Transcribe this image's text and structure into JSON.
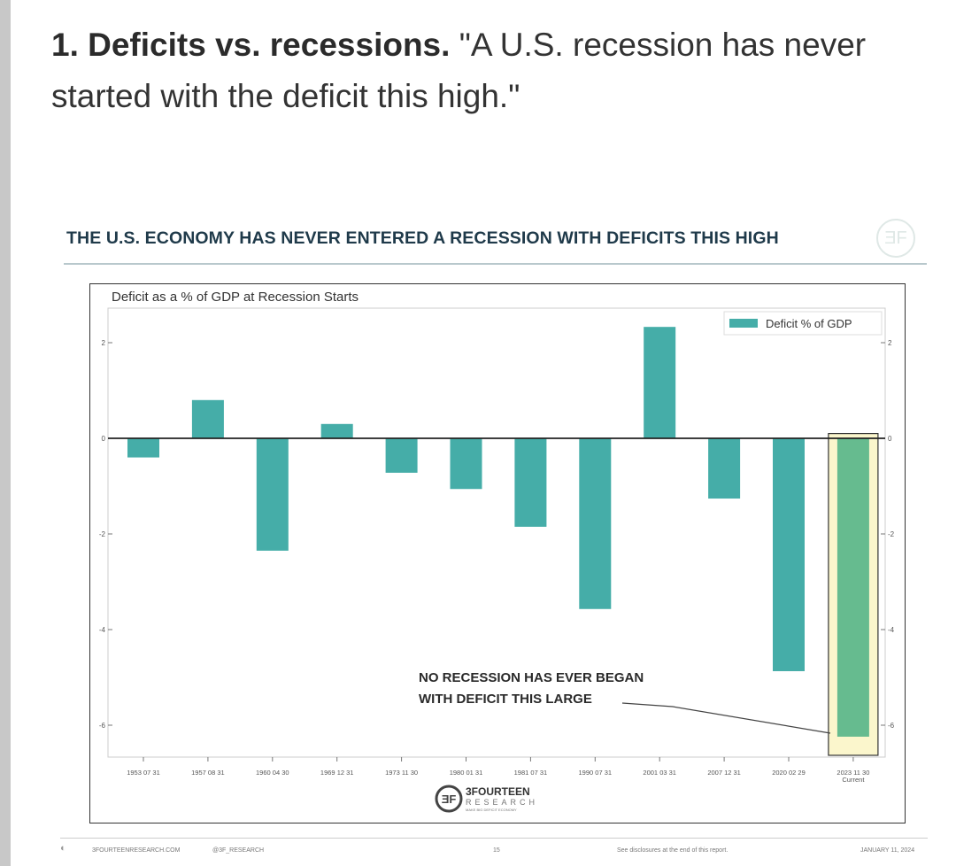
{
  "heading": {
    "bold": "1. Deficits vs. recessions.",
    "quote": " \"A U.S. recession has never started with the deficit this high.\""
  },
  "chart_title": "THE U.S. ECONOMY HAS NEVER ENTERED A RECESSION WITH DEFICITS THIS HIGH",
  "chart_data": {
    "type": "bar",
    "title": "Deficit as a % of GDP at Recession Starts",
    "xlabel": "",
    "ylabel": "",
    "categories": [
      "1953 07 31",
      "1957 08 31",
      "1960 04 30",
      "1969 12 31",
      "1973 11 30",
      "1980 01 31",
      "1981 07 31",
      "1990 07 31",
      "2001 03 31",
      "2007 12 31",
      "2020 02 29",
      "2023 11 30"
    ],
    "category_sublabels": {
      "2023 11 30": "Current"
    },
    "series": [
      {
        "name": "Deficit % of GDP",
        "values": [
          -0.4,
          0.8,
          -2.35,
          0.3,
          -0.72,
          -1.06,
          -1.85,
          -3.57,
          2.33,
          -1.26,
          -4.87,
          -6.24
        ]
      }
    ],
    "ylim": [
      -6.8,
      2.6
    ],
    "yticks": [
      2,
      0,
      -2,
      -4,
      -6
    ],
    "legend": "top-right",
    "grid": false,
    "colors": {
      "bar": "#45ada8",
      "highlight_bar": "#66bb8f",
      "highlight_bg": "#fbf6cc"
    },
    "annotation": {
      "line1": "NO RECESSION HAS EVER BEGAN",
      "line2": "WITH DEFICIT THIS LARGE"
    }
  },
  "logo": {
    "name": "3FOURTEEN",
    "sub": "RESEARCH",
    "tagline": "MAKE BIG DEFICIT ECONOMY"
  },
  "footer": {
    "site": "3FOURTEENRESEARCH.COM",
    "handle": "@3F_RESEARCH",
    "page": "15",
    "disclosure": "See disclosures at the end of this report.",
    "date": "JANUARY 11, 2024"
  }
}
